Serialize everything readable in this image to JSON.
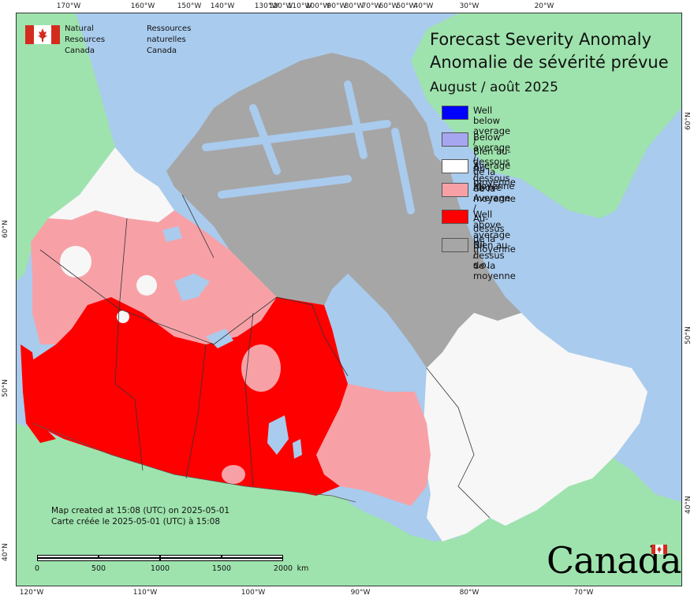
{
  "org": {
    "name_en": "Natural Resources\nCanada",
    "name_fr": "Ressources naturelles\nCanada",
    "flag_color": "#d52b1e"
  },
  "title": {
    "en": "Forecast Severity Anomaly",
    "fr": "Anomalie de sévérité prévue",
    "period": "August / août 2025"
  },
  "legend": [
    {
      "label": "Well below average /\nBien au-dessous de la moyenne",
      "color": "#0000ff"
    },
    {
      "label": "Below average /\nAu-dessous de la moyenne",
      "color": "#a6a6f0"
    },
    {
      "label": "Average / Moyenne",
      "color": "#ffffff"
    },
    {
      "label": "Above Average /\nAu-dessus de la moyenne",
      "color": "#f7a1a7"
    },
    {
      "label": "Well above average\nBien au-dessus de la moyenne",
      "color": "#ff0000"
    },
    {
      "label": "Nil / s.o.",
      "color": "#a6a6a6"
    }
  ],
  "colors": {
    "water": "#a9cbed",
    "foreign_land": "#9ee3ad",
    "nil": "#a6a6a6",
    "average": "#f7f7f7",
    "above": "#f7a1a7",
    "well_above": "#ff0000"
  },
  "credit": {
    "en": "Map created at 15:08 (UTC) on 2025-05-01",
    "fr": "Carte créée le 2025-05-01 (UTC) à 15:08"
  },
  "scale": {
    "labels": [
      "0",
      "500",
      "1000",
      "1500",
      "2000"
    ],
    "unit": "km"
  },
  "graticule": {
    "top": [
      "170°W",
      "160°W",
      "150°W",
      "140°W",
      "130°W",
      "120°W",
      "110°W",
      "100°W",
      "90°W",
      "80°W",
      "70°W",
      "60°W",
      "50°W",
      "40°W",
      "30°W",
      "20°W"
    ],
    "bottom": [
      "120°W",
      "110°W",
      "100°W",
      "90°W",
      "80°W",
      "70°W"
    ],
    "left": [
      "60°N",
      "50°N",
      "40°N"
    ],
    "right": [
      "60°N",
      "50°N",
      "40°N"
    ]
  },
  "wordmark": "Canada"
}
